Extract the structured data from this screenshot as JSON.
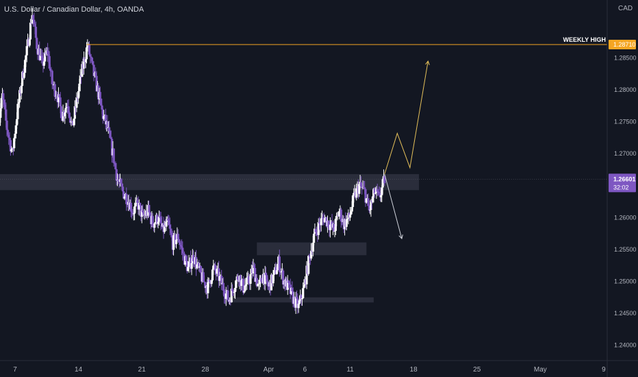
{
  "header": {
    "title": "U.S. Dollar / Canadian Dollar, 4h, OANDA",
    "currency": "CAD"
  },
  "colors": {
    "background": "#131722",
    "up_candle": "#ffffff",
    "down_candle": "#7e57c2",
    "zone": "#2f3140",
    "weekly_high_line": "#f5a623",
    "projection_up": "#e6c15a",
    "projection_down": "#d1d4dc",
    "price_tag": "#7e57c2"
  },
  "chart_data": {
    "type": "candlestick",
    "title": "U.S. Dollar / Canadian Dollar, 4h, OANDA",
    "ylim": [
      1.2376,
      1.293
    ],
    "y_ticks": [
      "1.28500",
      "1.28000",
      "1.27500",
      "1.27000",
      "1.26000",
      "1.25500",
      "1.25000",
      "1.24500",
      "1.24000"
    ],
    "x_ticks": [
      {
        "label": "7",
        "day": 7
      },
      {
        "label": "14",
        "day": 14
      },
      {
        "label": "21",
        "day": 21
      },
      {
        "label": "28",
        "day": 28
      },
      {
        "label": "Apr",
        "day": 35
      },
      {
        "label": "6",
        "day": 39
      },
      {
        "label": "11",
        "day": 44
      },
      {
        "label": "18",
        "day": 51
      },
      {
        "label": "25",
        "day": 58
      },
      {
        "label": "May",
        "day": 65
      },
      {
        "label": "9",
        "day": 72
      }
    ],
    "path": [
      [
        5.0,
        1.273
      ],
      [
        5.6,
        1.279
      ],
      [
        6.1,
        1.274
      ],
      [
        6.7,
        1.27
      ],
      [
        7.2,
        1.276
      ],
      [
        7.8,
        1.282
      ],
      [
        8.3,
        1.286
      ],
      [
        8.9,
        1.292
      ],
      [
        9.4,
        1.287
      ],
      [
        10.0,
        1.284
      ],
      [
        10.6,
        1.286
      ],
      [
        11.1,
        1.281
      ],
      [
        11.7,
        1.279
      ],
      [
        12.2,
        1.276
      ],
      [
        12.8,
        1.278
      ],
      [
        13.3,
        1.274
      ],
      [
        13.9,
        1.279
      ],
      [
        14.4,
        1.283
      ],
      [
        15.0,
        1.287
      ],
      [
        15.6,
        1.283
      ],
      [
        16.1,
        1.28
      ],
      [
        16.7,
        1.276
      ],
      [
        17.2,
        1.274
      ],
      [
        17.8,
        1.27
      ],
      [
        18.3,
        1.266
      ],
      [
        18.9,
        1.264
      ],
      [
        19.4,
        1.263
      ],
      [
        20.0,
        1.261
      ],
      [
        20.6,
        1.262
      ],
      [
        21.1,
        1.26
      ],
      [
        21.7,
        1.261
      ],
      [
        22.2,
        1.259
      ],
      [
        22.8,
        1.26
      ],
      [
        23.3,
        1.258
      ],
      [
        23.9,
        1.259
      ],
      [
        24.4,
        1.256
      ],
      [
        25.0,
        1.257
      ],
      [
        25.6,
        1.254
      ],
      [
        26.1,
        1.252
      ],
      [
        26.7,
        1.254
      ],
      [
        27.2,
        1.252
      ],
      [
        27.8,
        1.25
      ],
      [
        28.3,
        1.249
      ],
      [
        28.9,
        1.252
      ],
      [
        29.4,
        1.251
      ],
      [
        30.0,
        1.249
      ],
      [
        30.6,
        1.247
      ],
      [
        31.1,
        1.249
      ],
      [
        31.7,
        1.251
      ],
      [
        32.2,
        1.249
      ],
      [
        32.8,
        1.25
      ],
      [
        33.3,
        1.252
      ],
      [
        33.9,
        1.249
      ],
      [
        34.4,
        1.251
      ],
      [
        35.0,
        1.249
      ],
      [
        35.6,
        1.251
      ],
      [
        36.1,
        1.253
      ],
      [
        36.7,
        1.25
      ],
      [
        37.2,
        1.249
      ],
      [
        37.8,
        1.247
      ],
      [
        38.3,
        1.246
      ],
      [
        38.9,
        1.249
      ],
      [
        39.4,
        1.253
      ],
      [
        40.0,
        1.257
      ],
      [
        40.6,
        1.259
      ],
      [
        41.1,
        1.26
      ],
      [
        41.7,
        1.259
      ],
      [
        42.2,
        1.258
      ],
      [
        42.8,
        1.261
      ],
      [
        43.3,
        1.259
      ],
      [
        43.9,
        1.26
      ],
      [
        44.4,
        1.263
      ],
      [
        45.0,
        1.265
      ],
      [
        45.6,
        1.264
      ],
      [
        46.1,
        1.261
      ],
      [
        46.7,
        1.264
      ],
      [
        47.2,
        1.263
      ],
      [
        47.8,
        1.266
      ]
    ],
    "zones": [
      {
        "day_start": 0,
        "day_end": 51.6,
        "low": 1.2643,
        "high": 1.2668
      },
      {
        "day_start": 33.7,
        "day_end": 45.8,
        "low": 1.2541,
        "high": 1.2561
      },
      {
        "day_start": 30.2,
        "day_end": 46.6,
        "low": 1.2467,
        "high": 1.2475
      }
    ],
    "weekly_high": {
      "label": "WEEKLY HIGH",
      "price": 1.2871,
      "price_label": "1.28710",
      "day_start": 14.9
    },
    "projection_up": [
      [
        47.8,
        1.2668
      ],
      [
        49.2,
        1.2732
      ],
      [
        50.6,
        1.2678
      ],
      [
        52.6,
        1.2845
      ]
    ],
    "projection_down": [
      [
        47.8,
        1.2668
      ],
      [
        49.7,
        1.2567
      ]
    ],
    "current_price": {
      "price": 1.26601,
      "label": "1.26601",
      "countdown": "32:02"
    }
  }
}
